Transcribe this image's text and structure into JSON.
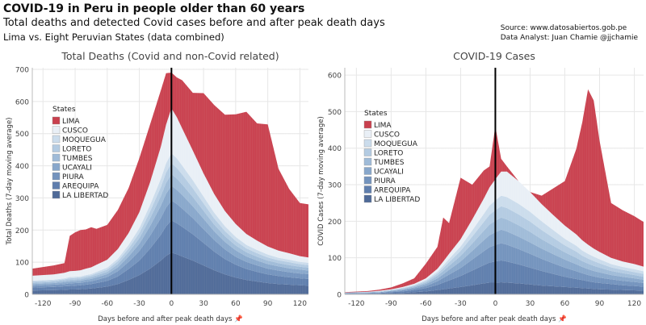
{
  "header": {
    "title": "COVID-19 in Peru in people older than 60 years",
    "subtitle": "Total deaths and detected Covid cases before and after peak death days",
    "subsubtitle": "Lima vs. Eight Peruvian States (data combined)"
  },
  "source": {
    "line1": "Source: www.datosabiertos.gob.pe",
    "line2": "Data Analyst: Juan Chamie @jjchamie"
  },
  "colors": {
    "LIMA": "#c9404e",
    "CUSCO": "#e9eff6",
    "MOQUEGUA": "#cbdcec",
    "LORETO": "#b3cbe2",
    "TUMBES": "#9fbbd8",
    "UCAYALI": "#88a7cb",
    "PIURA": "#7393bd",
    "AREQUIPA": "#5f7ead",
    "LA LIBERTAD": "#4f6a98",
    "peak_line": "#000000",
    "grid": "#e6e6e6"
  },
  "chart_data": [
    {
      "type": "area",
      "title": "Total Deaths (Covid and non-Covid related)",
      "xlabel": "Days before and after peak death days 📌",
      "ylabel": "Total Deaths (7-day moving average)",
      "xlim": [
        -130,
        128
      ],
      "ylim": [
        0,
        705
      ],
      "xticks": [
        -120,
        -90,
        -60,
        -30,
        0,
        30,
        60,
        90,
        120
      ],
      "yticks": [
        0,
        100,
        200,
        300,
        400,
        500,
        600,
        700
      ],
      "stacked": true,
      "legend_title": "States",
      "legend_position": "left",
      "peak_line_x": 0,
      "x": [
        -130,
        -110,
        -100,
        -95,
        -90,
        -85,
        -80,
        -75,
        -70,
        -60,
        -50,
        -40,
        -30,
        -20,
        -10,
        -5,
        0,
        5,
        10,
        20,
        30,
        40,
        50,
        60,
        70,
        80,
        90,
        100,
        110,
        120,
        128
      ],
      "series": [
        {
          "name": "LA LIBERTAD",
          "values": [
            12,
            13,
            14,
            15,
            15,
            16,
            17,
            18,
            20,
            24,
            32,
            45,
            60,
            80,
            105,
            120,
            130,
            125,
            118,
            105,
            90,
            75,
            62,
            52,
            45,
            40,
            35,
            32,
            30,
            28,
            27
          ]
        },
        {
          "name": "AREQUIPA",
          "values": [
            9,
            10,
            11,
            11,
            12,
            12,
            13,
            14,
            15,
            18,
            24,
            34,
            45,
            62,
            80,
            92,
            100,
            96,
            92,
            82,
            70,
            58,
            48,
            40,
            34,
            30,
            27,
            25,
            23,
            22,
            21
          ]
        },
        {
          "name": "PIURA",
          "values": [
            6,
            7,
            7,
            8,
            8,
            8,
            9,
            9,
            10,
            12,
            16,
            22,
            30,
            40,
            52,
            58,
            62,
            60,
            57,
            50,
            43,
            36,
            30,
            25,
            22,
            20,
            18,
            17,
            16,
            15,
            15
          ]
        },
        {
          "name": "UCAYALI",
          "values": [
            5,
            5,
            6,
            6,
            6,
            6,
            7,
            7,
            8,
            9,
            12,
            17,
            22,
            30,
            38,
            43,
            46,
            44,
            42,
            37,
            32,
            27,
            23,
            20,
            17,
            15,
            14,
            13,
            12,
            12,
            11
          ]
        },
        {
          "name": "TUMBES",
          "values": [
            4,
            4,
            5,
            5,
            5,
            5,
            5,
            6,
            6,
            7,
            10,
            13,
            18,
            24,
            30,
            34,
            36,
            35,
            33,
            29,
            25,
            21,
            18,
            15,
            13,
            12,
            11,
            10,
            10,
            9,
            9
          ]
        },
        {
          "name": "LORETO",
          "values": [
            4,
            4,
            4,
            5,
            5,
            5,
            5,
            5,
            6,
            7,
            9,
            12,
            16,
            22,
            28,
            32,
            34,
            33,
            31,
            27,
            23,
            19,
            16,
            14,
            12,
            11,
            10,
            9,
            9,
            8,
            8
          ]
        },
        {
          "name": "MOQUEGUA",
          "values": [
            3,
            3,
            3,
            4,
            4,
            4,
            4,
            4,
            5,
            6,
            8,
            11,
            15,
            20,
            26,
            29,
            31,
            30,
            28,
            25,
            21,
            18,
            15,
            13,
            11,
            10,
            9,
            8,
            8,
            7,
            7
          ]
        },
        {
          "name": "CUSCO",
          "values": [
            15,
            16,
            17,
            18,
            18,
            19,
            20,
            21,
            22,
            25,
            30,
            37,
            50,
            70,
            100,
            120,
            140,
            128,
            115,
            92,
            72,
            58,
            47,
            40,
            34,
            29,
            25,
            22,
            20,
            18,
            17
          ]
        },
        {
          "name": "LIMA",
          "values": [
            22,
            28,
            30,
            110,
            120,
            125,
            122,
            125,
            112,
            108,
            122,
            140,
            168,
            180,
            175,
            160,
            111,
            124,
            150,
            180,
            250,
            277,
            300,
            341,
            380,
            365,
            380,
            255,
            200,
            165,
            165
          ]
        }
      ]
    },
    {
      "type": "area",
      "title": "COVID-19 Cases",
      "xlabel": "Days before and after peak death days 📌",
      "ylabel": "COVID Cases (7-day moving average)",
      "xlim": [
        -130,
        128
      ],
      "ylim": [
        0,
        620
      ],
      "xticks": [
        -120,
        -90,
        -60,
        -30,
        0,
        30,
        60,
        90,
        120
      ],
      "yticks": [
        0,
        100,
        200,
        300,
        400,
        500,
        600
      ],
      "stacked": true,
      "legend_title": "States",
      "legend_position": "left",
      "peak_line_x": 0,
      "x": [
        -130,
        -110,
        -100,
        -90,
        -80,
        -70,
        -60,
        -50,
        -45,
        -40,
        -30,
        -20,
        -10,
        -5,
        0,
        5,
        10,
        20,
        30,
        40,
        50,
        60,
        70,
        75,
        80,
        85,
        90,
        100,
        110,
        120,
        128
      ],
      "series": [
        {
          "name": "LA LIBERTAD",
          "values": [
            1,
            2,
            2,
            3,
            4,
            6,
            8,
            12,
            14,
            16,
            20,
            25,
            30,
            32,
            32,
            33,
            32,
            30,
            27,
            24,
            22,
            20,
            18,
            17,
            16,
            15,
            14,
            13,
            12,
            11,
            10
          ]
        },
        {
          "name": "AREQUIPA",
          "values": [
            1,
            1,
            2,
            3,
            4,
            6,
            9,
            14,
            18,
            22,
            30,
            40,
            50,
            55,
            58,
            60,
            58,
            52,
            46,
            40,
            34,
            28,
            24,
            22,
            20,
            18,
            17,
            15,
            13,
            12,
            11
          ]
        },
        {
          "name": "PIURA",
          "values": [
            1,
            1,
            1,
            2,
            3,
            4,
            6,
            10,
            13,
            16,
            22,
            30,
            38,
            42,
            45,
            47,
            46,
            42,
            38,
            33,
            29,
            25,
            21,
            19,
            17,
            16,
            15,
            13,
            12,
            11,
            10
          ]
        },
        {
          "name": "UCAYALI",
          "values": [
            1,
            1,
            1,
            2,
            2,
            3,
            5,
            8,
            10,
            13,
            18,
            24,
            30,
            33,
            35,
            37,
            36,
            34,
            31,
            28,
            25,
            22,
            19,
            17,
            16,
            15,
            14,
            12,
            11,
            10,
            9
          ]
        },
        {
          "name": "TUMBES",
          "values": [
            1,
            1,
            1,
            1,
            2,
            3,
            4,
            7,
            9,
            11,
            15,
            20,
            26,
            29,
            31,
            33,
            33,
            31,
            29,
            26,
            23,
            20,
            18,
            16,
            15,
            14,
            13,
            11,
            10,
            9,
            8
          ]
        },
        {
          "name": "LORETO",
          "values": [
            0,
            1,
            1,
            1,
            2,
            2,
            4,
            6,
            8,
            10,
            14,
            19,
            24,
            27,
            29,
            31,
            31,
            30,
            28,
            25,
            22,
            19,
            17,
            15,
            14,
            13,
            12,
            10,
            9,
            8,
            8
          ]
        },
        {
          "name": "MOQUEGUA",
          "values": [
            0,
            0,
            1,
            1,
            1,
            2,
            3,
            5,
            7,
            9,
            12,
            17,
            22,
            25,
            27,
            29,
            30,
            29,
            27,
            24,
            21,
            18,
            16,
            14,
            13,
            12,
            11,
            9,
            8,
            8,
            7
          ]
        },
        {
          "name": "CUSCO",
          "values": [
            0,
            0,
            1,
            1,
            2,
            3,
            5,
            8,
            11,
            14,
            20,
            30,
            42,
            50,
            58,
            66,
            70,
            62,
            54,
            47,
            41,
            36,
            31,
            28,
            25,
            22,
            20,
            17,
            15,
            14,
            13
          ]
        },
        {
          "name": "LIMA",
          "values": [
            1,
            2,
            3,
            5,
            10,
            15,
            40,
            60,
            120,
            84,
            168,
            95,
            77,
            57,
            145,
            35,
            14,
            0,
            0,
            23,
            73,
            122,
            235,
            322,
            425,
            405,
            304,
            150,
            140,
            131,
            122
          ]
        }
      ]
    }
  ]
}
